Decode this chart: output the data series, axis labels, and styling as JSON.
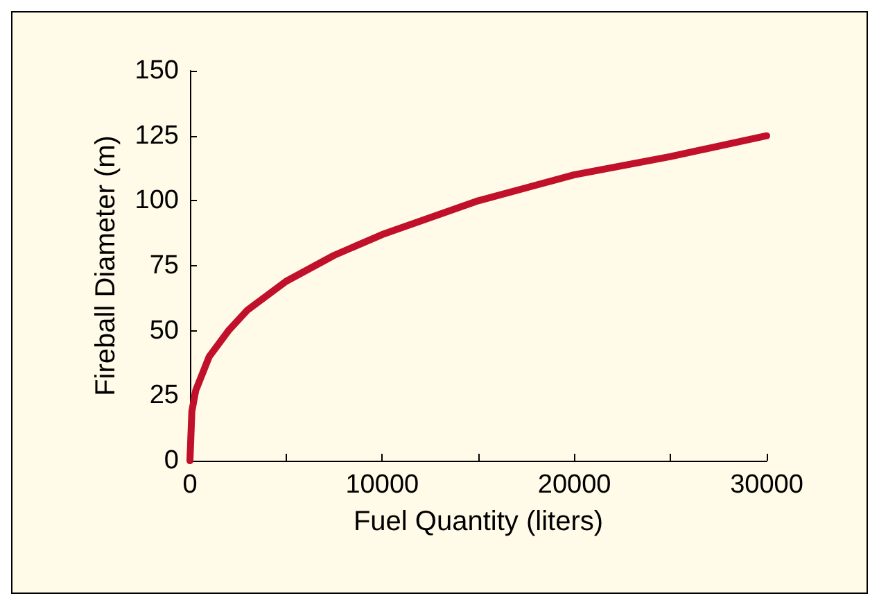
{
  "chart_data": {
    "type": "line",
    "xlabel": "Fuel Quantity (liters)",
    "ylabel": "Fireball Diameter (m)",
    "x": [
      0,
      100,
      300,
      1000,
      2000,
      3000,
      5000,
      7500,
      10000,
      15000,
      20000,
      25000,
      30000
    ],
    "series": [
      {
        "color": "#c0102a",
        "values": [
          0,
          19,
          27,
          40,
          50,
          58,
          69,
          79,
          87,
          100,
          110,
          117,
          125
        ]
      }
    ],
    "xlim": [
      0,
      30000
    ],
    "xticks": [
      0,
      {
        "value": 5000,
        "label": null
      },
      10000,
      {
        "value": 15000,
        "label": null
      },
      20000,
      {
        "value": 25000,
        "label": null
      },
      30000
    ],
    "ylim": [
      0,
      150
    ],
    "yticks": [
      0,
      25,
      50,
      75,
      100,
      125,
      150
    ],
    "grid": false,
    "marker": "none",
    "line_style": "solid"
  }
}
